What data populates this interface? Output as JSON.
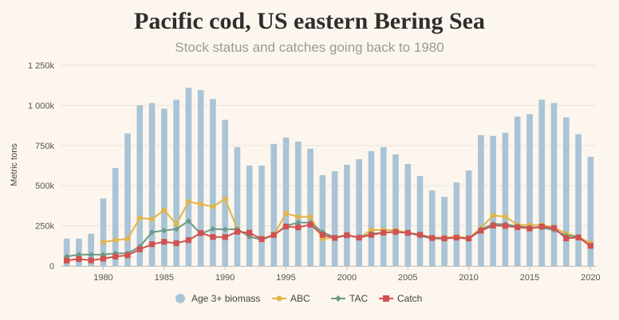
{
  "chart_data": {
    "type": "bar",
    "title": "Pacific cod, US eastern Bering Sea",
    "subtitle": "Stock status and catches going back to 1980",
    "ylabel": "Metric tons",
    "ylim": [
      0,
      1250000
    ],
    "yticks": [
      0,
      250000,
      500000,
      750000,
      1000000,
      1250000
    ],
    "ytick_labels": [
      "0",
      "250k",
      "500k",
      "750k",
      "1 000k",
      "1 250k"
    ],
    "xticks": [
      1980,
      1985,
      1990,
      1995,
      2000,
      2005,
      2010,
      2015,
      2020
    ],
    "years": [
      1977,
      1978,
      1979,
      1980,
      1981,
      1982,
      1983,
      1984,
      1985,
      1986,
      1987,
      1988,
      1989,
      1990,
      1991,
      1992,
      1993,
      1994,
      1995,
      1996,
      1997,
      1998,
      1999,
      2000,
      2001,
      2002,
      2003,
      2004,
      2005,
      2006,
      2007,
      2008,
      2009,
      2010,
      2011,
      2012,
      2013,
      2014,
      2015,
      2016,
      2017,
      2018,
      2019,
      2020
    ],
    "series": [
      {
        "name": "Age 3+ biomass",
        "kind": "bar",
        "color": "#a9c4d6",
        "values": [
          170000,
          170000,
          200000,
          420000,
          610000,
          825000,
          1000000,
          1015000,
          980000,
          1035000,
          1110000,
          1095000,
          1040000,
          910000,
          740000,
          625000,
          625000,
          760000,
          800000,
          775000,
          730000,
          565000,
          590000,
          630000,
          665000,
          715000,
          740000,
          695000,
          635000,
          560000,
          470000,
          430000,
          520000,
          595000,
          815000,
          810000,
          830000,
          930000,
          945000,
          1035000,
          1015000,
          925000,
          820000,
          680000
        ]
      },
      {
        "name": "ABC",
        "kind": "line",
        "color": "#e3b446",
        "values": [
          null,
          null,
          null,
          148000,
          160000,
          168000,
          298000,
          291000,
          347000,
          260000,
          400000,
          385000,
          369000,
          417000,
          229000,
          182000,
          164000,
          191000,
          328000,
          305000,
          306000,
          168000,
          177000,
          193000,
          176000,
          223000,
          223000,
          223000,
          206000,
          194000,
          176000,
          176000,
          182000,
          174000,
          235000,
          314000,
          307000,
          255000,
          255000,
          255000,
          239000,
          201000,
          181000,
          141000
        ]
      },
      {
        "name": "TAC",
        "kind": "line",
        "color": "#6d9a8a",
        "values": [
          58000,
          70000,
          70000,
          70000,
          78000,
          78000,
          120000,
          210000,
          220000,
          229000,
          280000,
          200000,
          230000,
          227000,
          229000,
          182000,
          164000,
          191000,
          250000,
          270000,
          270000,
          210000,
          177000,
          193000,
          176000,
          200000,
          207000,
          212000,
          206000,
          188000,
          170000,
          170000,
          176000,
          168000,
          227000,
          261000,
          260000,
          246000,
          240000,
          238000,
          223000,
          188000,
          181000,
          122000
        ]
      },
      {
        "name": "Catch",
        "kind": "line",
        "color": "#d05151",
        "values": [
          33000,
          43000,
          34000,
          45000,
          58000,
          66000,
          103000,
          135000,
          150000,
          141000,
          160000,
          205000,
          180000,
          179000,
          213000,
          207000,
          167000,
          193000,
          245000,
          240000,
          257000,
          193000,
          174000,
          191000,
          176000,
          193000,
          207000,
          212000,
          206000,
          194000,
          174000,
          171000,
          176000,
          171000,
          219000,
          251000,
          249000,
          241000,
          233000,
          245000,
          236000,
          171000,
          177000,
          125000
        ]
      }
    ],
    "legend": {
      "position": "bottom"
    },
    "grid": {
      "y": true
    }
  }
}
